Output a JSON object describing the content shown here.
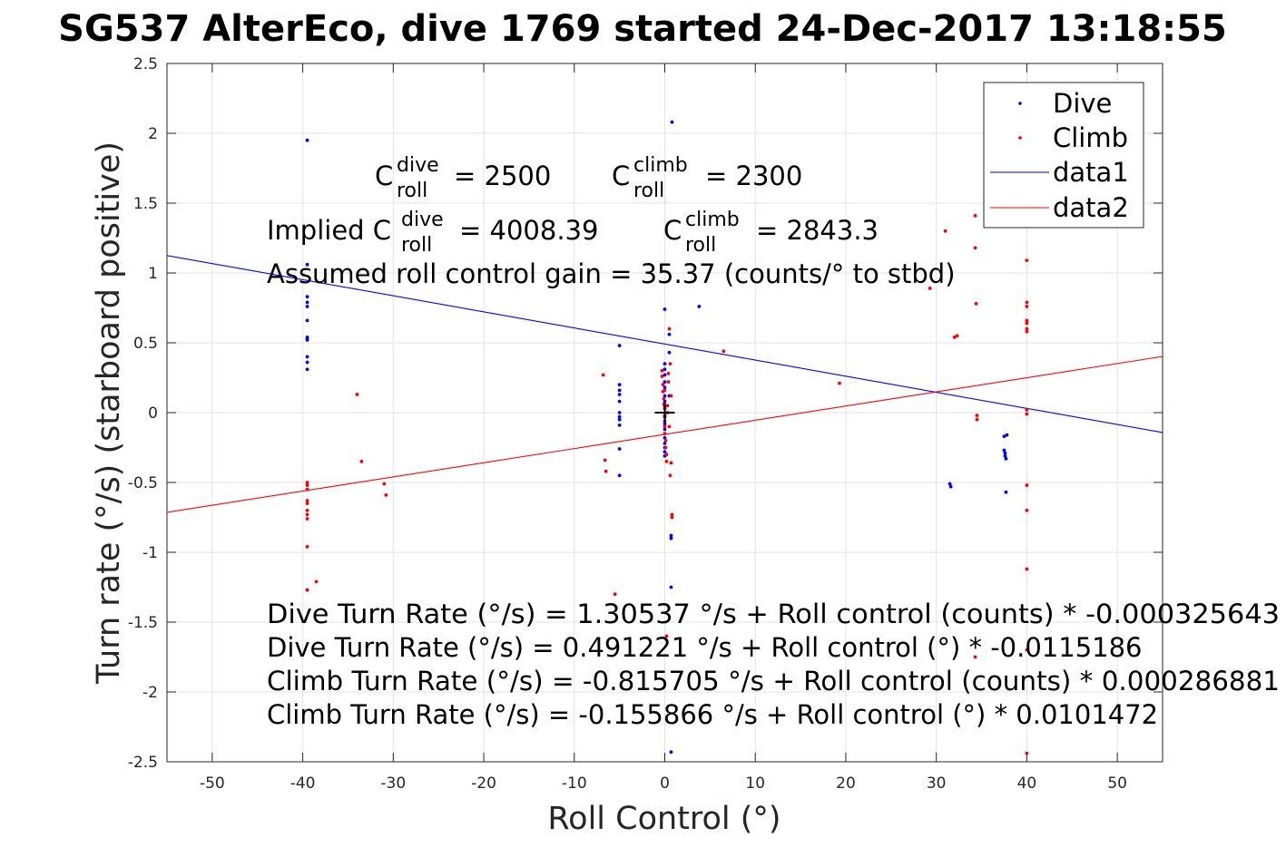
{
  "figure_title": "SG537 AlterEco, dive 1769 started 24-Dec-2017 13:18:55",
  "chart_data": {
    "type": "scatter",
    "title": "SG537 AlterEco, dive 1769 started 24-Dec-2017 13:18:55",
    "xlabel": "Roll Control (°)",
    "ylabel": "Turn rate (°/s) (starboard positive)",
    "xlim": [
      -55,
      55
    ],
    "ylim": [
      -2.5,
      2.5
    ],
    "xticks": [
      "-50",
      "-40",
      "-30",
      "-20",
      "-10",
      "0",
      "10",
      "20",
      "30",
      "40",
      "50"
    ],
    "yticks": [
      "2.5",
      "2",
      "1.5",
      "1",
      "0.5",
      "0",
      "-0.5",
      "-1",
      "-1.5",
      "-2",
      "-2.5"
    ],
    "grid": true,
    "legend_position": "top-right",
    "legend": [
      "Dive",
      "Climb",
      "data1",
      "data2"
    ],
    "series": [
      {
        "name": "Dive",
        "kind": "points",
        "color": "#0000ff",
        "x": [
          -39.5,
          -39.5,
          -39.5,
          -39.5,
          -39.5,
          -39.5,
          -39.5,
          -39.5,
          -39.5,
          -39.5,
          -39.5,
          -39.5,
          -39.5,
          -5,
          -5,
          -5,
          -5,
          -5,
          -5,
          -5,
          -5,
          -5,
          -5,
          -5,
          0,
          0,
          0,
          0,
          0,
          0,
          0,
          0,
          0,
          0,
          0,
          0,
          0,
          0,
          0,
          0,
          0,
          0,
          0.5,
          0.5,
          0.5,
          0.7,
          0.7,
          0.7,
          0.7,
          0.8,
          3.8,
          31.5,
          31.6,
          37.5,
          37.5,
          37.6,
          37.6,
          37.7,
          37.7,
          37.8
        ],
        "y": [
          1.95,
          1.06,
          0.83,
          0.79,
          0.76,
          0.66,
          0.54,
          0.53,
          0.52,
          0.4,
          0.36,
          0.31,
          -1.27,
          0.48,
          0.2,
          0.16,
          0.13,
          0.08,
          0.0,
          -0.03,
          -0.05,
          -0.09,
          -0.26,
          -0.45,
          0.74,
          0.35,
          0.31,
          0.27,
          0.22,
          0.18,
          0.12,
          0.08,
          0.05,
          0.03,
          -0.03,
          -0.08,
          -0.12,
          -0.18,
          -0.22,
          -0.25,
          -0.28,
          -0.31,
          0.56,
          0.43,
          0.12,
          -0.88,
          -0.9,
          -1.25,
          -2.43,
          2.08,
          0.76,
          -0.51,
          -0.53,
          -0.17,
          -0.27,
          -0.29,
          -0.31,
          -0.33,
          -0.57,
          -0.16
        ]
      },
      {
        "name": "Climb",
        "kind": "points",
        "color": "#ff0000",
        "x": [
          -39.5,
          -39.5,
          -39.5,
          -39.5,
          -39.5,
          -39.5,
          -39.5,
          -39.5,
          -39.5,
          -39.5,
          -38.5,
          -34,
          -33.5,
          -31,
          -30.8,
          -6.8,
          -6.6,
          -6.5,
          -5.5,
          -0.3,
          -0.3,
          -0.2,
          -0.2,
          -0.1,
          -0.1,
          0,
          0,
          0,
          0,
          0,
          0.1,
          0.1,
          0.2,
          0.2,
          0.3,
          0.3,
          0.4,
          0.4,
          0.5,
          0.5,
          0.6,
          0.6,
          0.7,
          0.7,
          0.8,
          0.8,
          0,
          0.2,
          6.5,
          19.3,
          29.3,
          31,
          32,
          32.3,
          34.3,
          34.3,
          34.4,
          34.5,
          34.5,
          34.3,
          40,
          40,
          40,
          40,
          40,
          40,
          40,
          40,
          40,
          40,
          40,
          40,
          40,
          40
        ],
        "y": [
          -0.5,
          -0.52,
          -0.55,
          -0.63,
          -0.65,
          -0.7,
          -0.73,
          -0.76,
          -0.96,
          -1.27,
          -1.21,
          0.13,
          -0.35,
          -0.51,
          -0.59,
          0.27,
          -0.34,
          -0.42,
          -1.3,
          0.3,
          0.26,
          0.2,
          0.15,
          0.1,
          0.06,
          0.03,
          -0.02,
          -0.06,
          -0.1,
          -0.15,
          -0.2,
          -0.25,
          -0.3,
          -0.35,
          0.05,
          0.0,
          0.28,
          0.22,
          0.6,
          -0.1,
          0.35,
          -0.45,
          0.12,
          -0.36,
          -0.73,
          -0.75,
          0.16,
          -1.6,
          0.44,
          0.21,
          0.89,
          1.3,
          0.54,
          0.55,
          1.41,
          1.18,
          0.78,
          -0.02,
          -0.05,
          -1.75,
          1.09,
          0.79,
          0.76,
          0.66,
          0.64,
          0.6,
          0.58,
          0.02,
          -0.01,
          -0.52,
          -0.7,
          -1.12,
          -1.7,
          -2.44
        ]
      },
      {
        "name": "data1",
        "kind": "line",
        "color": "#0000ff",
        "x": [
          -55,
          55
        ],
        "y": [
          1.124744,
          -0.142302
        ]
      },
      {
        "name": "data2",
        "kind": "line",
        "color": "#ff0000",
        "x": [
          -55,
          55
        ],
        "y": [
          -0.713962,
          0.40223
        ]
      }
    ],
    "marker": {
      "x": 0,
      "y": 0,
      "symbol": "+",
      "color": "#000000"
    },
    "annotations": {
      "c_dive_prefix": "C",
      "c_dive_sub": "roll",
      "c_dive_sup": "dive",
      "c_dive_val": "= 2500",
      "c_climb_prefix": "C",
      "c_climb_sub": "roll",
      "c_climb_sup": "climb",
      "c_climb_val": "= 2300",
      "implied_prefix": "Implied C",
      "implied_sub": "roll",
      "implied_sup": "dive",
      "implied_val": "= 4008.39",
      "implied_climb_prefix": "C",
      "implied_climb_sub": "roll",
      "implied_climb_sup": "climb",
      "implied_climb_val": "= 2843.3",
      "gain": "Assumed roll control gain = 35.37 (counts/° to stbd)",
      "eq1": "Dive Turn Rate (°/s) = 1.30537 °/s + Roll control (counts) * -0.000325643",
      "eq2": "Dive Turn Rate (°/s) = 0.491221 °/s + Roll control (°) * -0.0115186",
      "eq3": "Climb Turn Rate (°/s) = -0.815705 °/s + Roll control (counts) * 0.000286881",
      "eq4": "Climb Turn Rate (°/s) = -0.155866 °/s + Roll control (°) * 0.0101472"
    }
  }
}
